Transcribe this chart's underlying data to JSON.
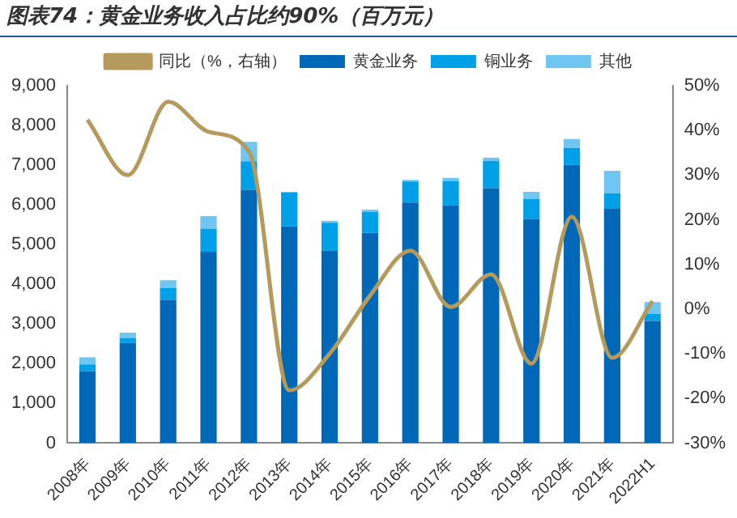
{
  "chart_data": {
    "type": "bar",
    "title": "图表74：黄金业务收入占比约90%（百万元）",
    "stacked": true,
    "grid": false,
    "legend": "top",
    "categories": [
      "2008年",
      "2009年",
      "2010年",
      "2011年",
      "2012年",
      "2013年",
      "2014年",
      "2015年",
      "2016年",
      "2017年",
      "2018年",
      "2019年",
      "2020年",
      "2021年",
      "2022H1"
    ],
    "series": [
      {
        "name": "黄金业务",
        "color": "#0068b7",
        "values": [
          1810,
          2530,
          3610,
          4820,
          6380,
          5460,
          4850,
          5300,
          6060,
          5990,
          6420,
          5640,
          7010,
          5900,
          3080
        ]
      },
      {
        "name": "铜业务",
        "color": "#00a0e9",
        "values": [
          170,
          120,
          300,
          580,
          720,
          850,
          700,
          520,
          530,
          610,
          690,
          510,
          420,
          390,
          170
        ]
      },
      {
        "name": "其他",
        "color": "#6fc6f2",
        "values": [
          180,
          130,
          190,
          320,
          490,
          20,
          50,
          60,
          40,
          80,
          80,
          180,
          230,
          570,
          300
        ]
      },
      {
        "name": "同比（%，右轴）",
        "type": "line",
        "axis": "y2",
        "color": "#b59a5c",
        "marker": "none",
        "line_style": "solid",
        "values": [
          42.4,
          30.0,
          46.4,
          39.7,
          35.3,
          -18.2,
          -10.0,
          3.0,
          13.1,
          0.5,
          7.8,
          -12.2,
          20.7,
          -10.9,
          1.8
        ]
      }
    ],
    "ylim": [
      0,
      9000
    ],
    "yticks": [
      0,
      {
        "value": 1000,
        "label": "1,000"
      },
      {
        "value": 2000,
        "label": "2,000"
      },
      {
        "value": 3000,
        "label": "3,000"
      },
      {
        "value": 4000,
        "label": "4,000"
      },
      {
        "value": 5000,
        "label": "5,000"
      },
      {
        "value": 6000,
        "label": "6,000"
      },
      {
        "value": 7000,
        "label": "7,000"
      },
      {
        "value": 8000,
        "label": "8,000"
      },
      {
        "value": 9000,
        "label": "9,000"
      }
    ],
    "y2lim": [
      -30,
      50
    ],
    "y2ticks": [
      {
        "value": -30,
        "label": "-30%"
      },
      {
        "value": -20,
        "label": "-20%"
      },
      {
        "value": -10,
        "label": "-10%"
      },
      {
        "value": 0,
        "label": "0%"
      },
      {
        "value": 10,
        "label": "10%"
      },
      {
        "value": 20,
        "label": "20%"
      },
      {
        "value": 30,
        "label": "30%"
      },
      {
        "value": 40,
        "label": "40%"
      },
      {
        "value": 50,
        "label": "50%"
      }
    ]
  }
}
